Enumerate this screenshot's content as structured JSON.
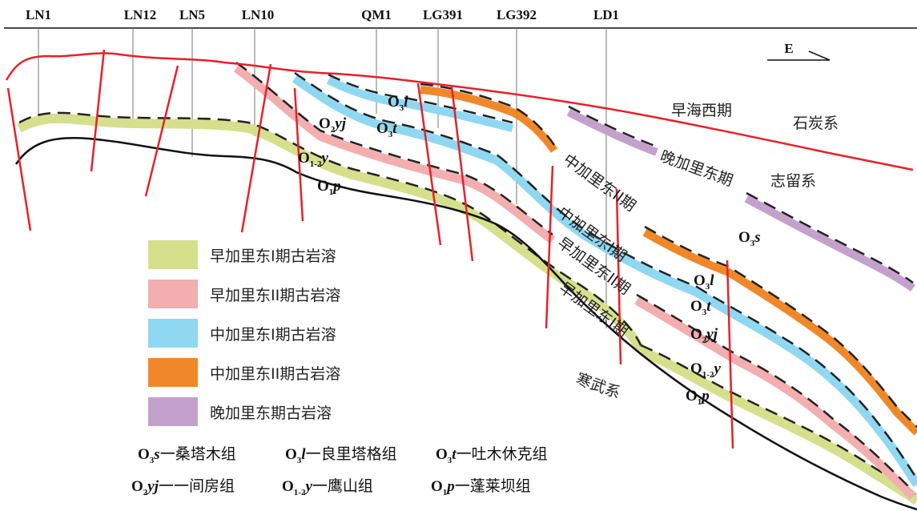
{
  "wells": [
    "LN1",
    "LN12",
    "LN5",
    "LN10",
    "QM1",
    "LG391",
    "LG392",
    "LD1"
  ],
  "direction": "E",
  "region_labels": {
    "early_hercynian": "早海西期",
    "carboniferous": "石炭系",
    "late_caledonian": "晚加里东期",
    "silurian": "志留系",
    "mid_caledonian_2": "中加里东II期",
    "mid_caledonian_1": "中加里东I期",
    "early_caledonian_2": "早加里东II期",
    "early_caledonian_1": "早加里东I期",
    "cambrian": "寒武系"
  },
  "formation_tags": {
    "o3l": {
      "base": "O",
      "sub": "3",
      "var": "l"
    },
    "o3t": {
      "base": "O",
      "sub": "3",
      "var": "t"
    },
    "o2yj": {
      "base": "O",
      "sub": "2",
      "var": "yj"
    },
    "o12y": {
      "base": "O",
      "sub": "1-2",
      "var": "y"
    },
    "o1p": {
      "base": "O",
      "sub": "1",
      "var": "p"
    },
    "o3s": {
      "base": "O",
      "sub": "3",
      "var": "s"
    }
  },
  "legend": [
    {
      "label": "早加里东I期古岩溶",
      "color": "#d4e08c"
    },
    {
      "label": "早加里东II期古岩溶",
      "color": "#f3aeb0"
    },
    {
      "label": "中加里东I期古岩溶",
      "color": "#8fd8f2"
    },
    {
      "label": "中加里东II期古岩溶",
      "color": "#f0882a"
    },
    {
      "label": "晚加里东期古岩溶",
      "color": "#c4a1cc"
    }
  ],
  "abbreviations": [
    {
      "base": "O",
      "sub": "3",
      "var": "s",
      "name": "一桑塔木组"
    },
    {
      "base": "O",
      "sub": "3",
      "var": "l",
      "name": "一良里塔格组"
    },
    {
      "base": "O",
      "sub": "3",
      "var": "t",
      "name": "一吐木休克组"
    },
    {
      "base": "O",
      "sub": "2",
      "var": "yj",
      "name": "一一间房组"
    },
    {
      "base": "O",
      "sub": "1-2",
      "var": "y",
      "name": "一鹰山组"
    },
    {
      "base": "O",
      "sub": "1",
      "var": "p",
      "name": "一蓬莱坝组"
    }
  ],
  "colors": {
    "fault": "#e8202a",
    "green": "#d4e08c",
    "pink": "#f3aeb0",
    "blue": "#8fd8f2",
    "orange": "#f0882a",
    "purple": "#c4a1cc"
  }
}
